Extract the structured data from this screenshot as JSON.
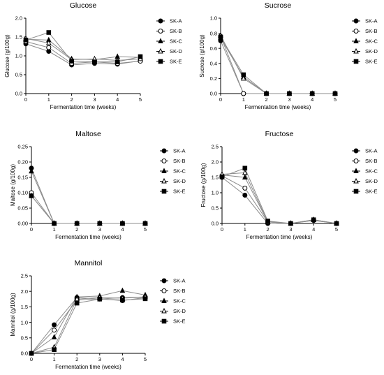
{
  "chart_data": [
    {
      "type": "line",
      "title": "Glucose",
      "xlabel": "Fermentation time (weeks)",
      "ylabel": "Glucose (g/100g)",
      "x": [
        0,
        1,
        2,
        3,
        4,
        5
      ],
      "xlim": [
        0,
        5
      ],
      "ylim": [
        0,
        2.0
      ],
      "yticks": [
        "0.0",
        "0.5",
        "1.0",
        "1.5",
        "2.0"
      ],
      "legend_position": "right",
      "series": [
        {
          "name": "SK-A",
          "marker": "filled-circle",
          "values": [
            1.32,
            1.12,
            0.76,
            0.8,
            0.78,
            0.87
          ]
        },
        {
          "name": "SK-B",
          "marker": "open-circle",
          "values": [
            1.38,
            1.22,
            0.8,
            0.84,
            0.8,
            0.86
          ]
        },
        {
          "name": "SK-C",
          "marker": "filled-triangle",
          "values": [
            1.44,
            1.42,
            0.92,
            0.9,
            0.98,
            0.96
          ]
        },
        {
          "name": "SK-D",
          "marker": "open-triangle",
          "values": [
            1.46,
            1.34,
            0.9,
            0.92,
            0.88,
            0.92
          ]
        },
        {
          "name": "SK-E",
          "marker": "filled-square",
          "values": [
            1.42,
            1.62,
            0.86,
            0.84,
            0.84,
            0.98
          ]
        }
      ]
    },
    {
      "type": "line",
      "title": "Sucrose",
      "xlabel": "Fermentation time (weeks)",
      "ylabel": "Sucrose (g/100g)",
      "x": [
        0,
        1,
        2,
        3,
        4,
        5
      ],
      "xlim": [
        0,
        5
      ],
      "ylim": [
        0,
        1.0
      ],
      "yticks": [
        "0.0",
        "0.2",
        "0.4",
        "0.6",
        "0.8",
        "1.0"
      ],
      "legend_position": "right",
      "series": [
        {
          "name": "SK-A",
          "marker": "filled-circle",
          "values": [
            0.7,
            0.0,
            0.0,
            0.0,
            0.0,
            0.0
          ]
        },
        {
          "name": "SK-B",
          "marker": "open-circle",
          "values": [
            0.76,
            0.0,
            0.0,
            0.0,
            0.0,
            0.0
          ]
        },
        {
          "name": "SK-C",
          "marker": "filled-triangle",
          "values": [
            0.74,
            0.22,
            0.0,
            0.0,
            0.0,
            0.0
          ]
        },
        {
          "name": "SK-D",
          "marker": "open-triangle",
          "values": [
            0.77,
            0.2,
            0.0,
            0.0,
            0.0,
            0.0
          ]
        },
        {
          "name": "SK-E",
          "marker": "filled-square",
          "values": [
            0.75,
            0.25,
            0.0,
            0.0,
            0.0,
            0.0
          ]
        }
      ]
    },
    {
      "type": "line",
      "title": "Maltose",
      "xlabel": "Fermentation time (weeks)",
      "ylabel": "Maltose (g/100g)",
      "x": [
        0,
        1,
        2,
        3,
        4,
        5
      ],
      "xlim": [
        0,
        5
      ],
      "ylim": [
        0,
        0.25
      ],
      "yticks": [
        "0.00",
        "0.05",
        "0.10",
        "0.15",
        "0.20",
        "0.25"
      ],
      "legend_position": "right",
      "series": [
        {
          "name": "SK-A",
          "marker": "filled-circle",
          "values": [
            0.18,
            0.0,
            0.0,
            0.0,
            0.0,
            0.0
          ]
        },
        {
          "name": "SK-B",
          "marker": "open-circle",
          "values": [
            0.1,
            0.0,
            0.0,
            0.0,
            0.0,
            0.0
          ]
        },
        {
          "name": "SK-C",
          "marker": "filled-triangle",
          "values": [
            0.17,
            0.0,
            0.0,
            0.0,
            0.0,
            0.0
          ]
        },
        {
          "name": "SK-D",
          "marker": "open-triangle",
          "values": [
            0.09,
            0.0,
            0.0,
            0.0,
            0.0,
            0.0
          ]
        },
        {
          "name": "SK-E",
          "marker": "filled-square",
          "values": [
            0.09,
            0.0,
            0.0,
            0.0,
            0.0,
            0.0
          ]
        }
      ]
    },
    {
      "type": "line",
      "title": "Fructose",
      "xlabel": "Fermentation time (weeks)",
      "ylabel": "Fructose (g/100g)",
      "x": [
        0,
        1,
        2,
        3,
        4,
        5
      ],
      "xlim": [
        0,
        5
      ],
      "ylim": [
        0,
        2.5
      ],
      "yticks": [
        "0.0",
        "0.5",
        "1.0",
        "1.5",
        "2.0",
        "2.5"
      ],
      "legend_position": "right",
      "series": [
        {
          "name": "SK-A",
          "marker": "filled-circle",
          "values": [
            1.5,
            0.92,
            0.0,
            0.0,
            0.1,
            0.0
          ]
        },
        {
          "name": "SK-B",
          "marker": "open-circle",
          "values": [
            1.55,
            1.15,
            0.05,
            0.0,
            0.1,
            0.0
          ]
        },
        {
          "name": "SK-C",
          "marker": "filled-triangle",
          "values": [
            1.58,
            1.5,
            0.05,
            0.0,
            0.12,
            0.0
          ]
        },
        {
          "name": "SK-D",
          "marker": "open-triangle",
          "values": [
            1.6,
            1.65,
            0.05,
            0.0,
            0.12,
            0.0
          ]
        },
        {
          "name": "SK-E",
          "marker": "filled-square",
          "values": [
            1.52,
            1.8,
            0.08,
            0.0,
            0.12,
            0.0
          ]
        }
      ]
    },
    {
      "type": "line",
      "title": "Mannitol",
      "xlabel": "Fermentation time (weeks)",
      "ylabel": "Mannitol (g/100g)",
      "x": [
        0,
        1,
        2,
        3,
        4,
        5
      ],
      "xlim": [
        0,
        5
      ],
      "ylim": [
        0,
        2.5
      ],
      "yticks": [
        "0.0",
        "0.5",
        "1.0",
        "1.5",
        "2.0",
        "2.5"
      ],
      "legend_position": "right",
      "series": [
        {
          "name": "SK-A",
          "marker": "filled-circle",
          "values": [
            0.0,
            0.92,
            1.8,
            1.75,
            1.8,
            1.82
          ]
        },
        {
          "name": "SK-B",
          "marker": "open-circle",
          "values": [
            0.0,
            0.75,
            1.72,
            1.76,
            1.7,
            1.8
          ]
        },
        {
          "name": "SK-C",
          "marker": "filled-triangle",
          "values": [
            0.0,
            0.52,
            1.82,
            1.85,
            2.02,
            1.88
          ]
        },
        {
          "name": "SK-D",
          "marker": "open-triangle",
          "values": [
            0.0,
            0.2,
            1.75,
            1.8,
            1.78,
            1.82
          ]
        },
        {
          "name": "SK-E",
          "marker": "filled-square",
          "values": [
            0.0,
            0.12,
            1.62,
            1.75,
            1.72,
            1.76
          ]
        }
      ]
    }
  ]
}
